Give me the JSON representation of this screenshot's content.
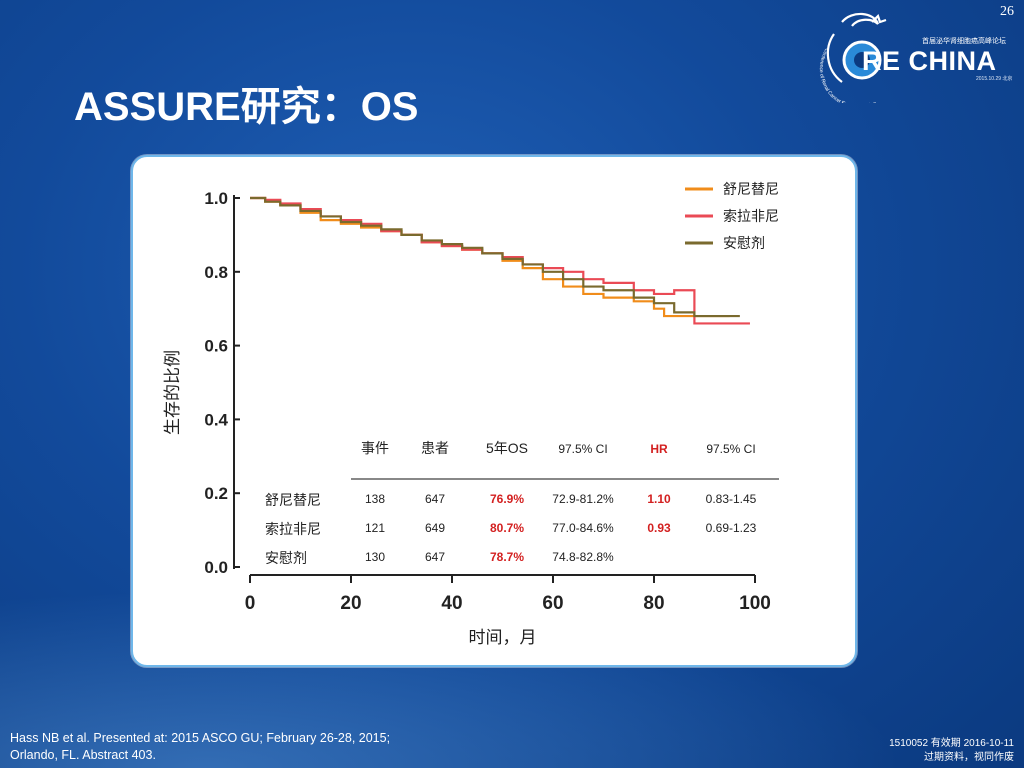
{
  "slide": {
    "page_number": "26",
    "title": "ASSURE研究：OS"
  },
  "logo": {
    "text": "RE CHINA",
    "subtitle": "首届泌华肾细胞癌高峰论坛",
    "date": "2015.10.29 北京",
    "arc_text": "Conference of Renal Cancer Experts in China"
  },
  "footer": {
    "reference_line1": "Hass NB et al. Presented at: 2015 ASCO GU;  February 26-28, 2015;",
    "reference_line2": "Orlando, FL. Abstract 403.",
    "doc_id": "1510052  有效期 2016-10-11",
    "doc_note": "过期资料，视同作废"
  },
  "colors": {
    "sunitinib": "#f08c1a",
    "sorafenib": "#ea4a55",
    "placebo": "#7a6a2e",
    "highlight": "#d32020"
  },
  "chart_data": {
    "type": "line",
    "xlabel": "时间，月",
    "ylabel": "生存的比例",
    "xlim": [
      0,
      100
    ],
    "ylim": [
      0,
      1.0
    ],
    "xticks": [
      "0",
      "20",
      "40",
      "60",
      "80",
      "100"
    ],
    "yticks": [
      "0.0",
      "0.2",
      "0.4",
      "0.6",
      "0.8",
      "1.0"
    ],
    "legend_position": "top-right",
    "series": [
      {
        "name": "舒尼替尼",
        "color": "#f08c1a",
        "points": [
          [
            0,
            1.0
          ],
          [
            3,
            0.99
          ],
          [
            6,
            0.98
          ],
          [
            10,
            0.96
          ],
          [
            14,
            0.94
          ],
          [
            18,
            0.93
          ],
          [
            22,
            0.92
          ],
          [
            26,
            0.91
          ],
          [
            30,
            0.9
          ],
          [
            34,
            0.88
          ],
          [
            38,
            0.87
          ],
          [
            42,
            0.86
          ],
          [
            46,
            0.85
          ],
          [
            50,
            0.83
          ],
          [
            54,
            0.81
          ],
          [
            58,
            0.78
          ],
          [
            62,
            0.76
          ],
          [
            66,
            0.74
          ],
          [
            70,
            0.73
          ],
          [
            76,
            0.72
          ],
          [
            80,
            0.7
          ],
          [
            82,
            0.68
          ],
          [
            86,
            0.68
          ],
          [
            95,
            0.68
          ]
        ]
      },
      {
        "name": "索拉非尼",
        "color": "#ea4a55",
        "points": [
          [
            0,
            1.0
          ],
          [
            3,
            0.995
          ],
          [
            6,
            0.985
          ],
          [
            10,
            0.97
          ],
          [
            14,
            0.95
          ],
          [
            18,
            0.94
          ],
          [
            22,
            0.93
          ],
          [
            26,
            0.91
          ],
          [
            30,
            0.9
          ],
          [
            34,
            0.88
          ],
          [
            38,
            0.87
          ],
          [
            42,
            0.86
          ],
          [
            46,
            0.85
          ],
          [
            50,
            0.84
          ],
          [
            54,
            0.82
          ],
          [
            58,
            0.81
          ],
          [
            62,
            0.8
          ],
          [
            66,
            0.78
          ],
          [
            70,
            0.77
          ],
          [
            76,
            0.75
          ],
          [
            80,
            0.74
          ],
          [
            84,
            0.75
          ],
          [
            88,
            0.66
          ],
          [
            99,
            0.66
          ]
        ]
      },
      {
        "name": "安慰剂",
        "color": "#7a6a2e",
        "points": [
          [
            0,
            1.0
          ],
          [
            3,
            0.99
          ],
          [
            6,
            0.98
          ],
          [
            10,
            0.965
          ],
          [
            14,
            0.95
          ],
          [
            18,
            0.935
          ],
          [
            22,
            0.925
          ],
          [
            26,
            0.915
          ],
          [
            30,
            0.9
          ],
          [
            34,
            0.885
          ],
          [
            38,
            0.875
          ],
          [
            42,
            0.865
          ],
          [
            46,
            0.85
          ],
          [
            50,
            0.835
          ],
          [
            54,
            0.82
          ],
          [
            58,
            0.8
          ],
          [
            62,
            0.78
          ],
          [
            66,
            0.76
          ],
          [
            70,
            0.75
          ],
          [
            76,
            0.73
          ],
          [
            80,
            0.715
          ],
          [
            84,
            0.69
          ],
          [
            88,
            0.68
          ],
          [
            97,
            0.68
          ]
        ]
      }
    ],
    "table": {
      "headers": [
        "事件",
        "患者",
        "5年OS",
        "97.5% CI",
        "HR",
        "97.5% CI"
      ],
      "rows": [
        {
          "name": "舒尼替尼",
          "events": "138",
          "patients": "647",
          "os5": "76.9%",
          "ci1": "72.9-81.2%",
          "hr": "1.10",
          "ci2": "0.83-1.45"
        },
        {
          "name": "索拉非尼",
          "events": "121",
          "patients": "649",
          "os5": "80.7%",
          "ci1": "77.0-84.6%",
          "hr": "0.93",
          "ci2": "0.69-1.23"
        },
        {
          "name": "安慰剂",
          "events": "130",
          "patients": "647",
          "os5": "78.7%",
          "ci1": "74.8-82.8%",
          "hr": "",
          "ci2": ""
        }
      ]
    }
  }
}
